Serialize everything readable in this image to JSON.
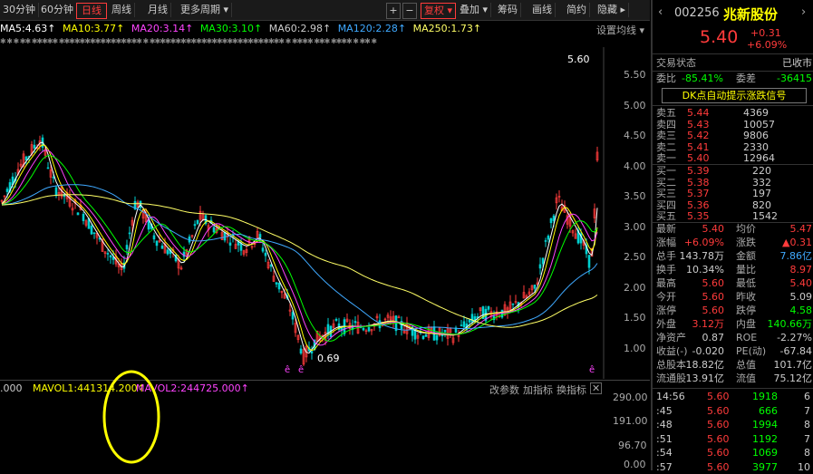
{
  "toolbar": {
    "periods": [
      "30分钟",
      "60分钟",
      "日线",
      "周线",
      "月线"
    ],
    "more_periods": "更多周期",
    "active_period": "日线",
    "plus": "+",
    "minus": "−",
    "adjust": "复权",
    "overlay": "叠加",
    "chips": "筹码",
    "draw": "画线",
    "simple": "简约",
    "hide": "隐藏"
  },
  "ma_line": {
    "ma5": "MA5:4.63↑",
    "ma10": "MA10:3.77↑",
    "ma20": "MA20:3.14↑",
    "ma30": "MA30:3.10↑",
    "ma60": "MA60:2.98↑",
    "ma120": "MA120:2.28↑",
    "ma250": "MA250:1.73↑",
    "settings": "设置均线"
  },
  "colors": {
    "up": "#ff3b3b",
    "down": "#00d0d0",
    "ma5": "#ffffff",
    "ma10": "#ffff00",
    "ma20": "#ff44ff",
    "ma30": "#00ff00",
    "ma60": "#cccccc",
    "ma120": "#3fa9ff",
    "ma250": "#ffff66",
    "annotation": "#ffff00"
  },
  "price_axis": [
    "5.50",
    "5.00",
    "4.50",
    "4.00",
    "3.50",
    "3.00",
    "2.50",
    "2.00",
    "1.50",
    "1.00"
  ],
  "chart_labels": {
    "high": "5.60",
    "low": "0.69",
    "marker": "ê"
  },
  "volume": {
    "prefix": ".000",
    "mavol1": "MAVOL1:441314.200↑",
    "mavol2": "MAVOL2:244725.000↑",
    "modify": "改参数",
    "add": "加指标",
    "switch": "换指标",
    "close": "✕",
    "axis": [
      "290.00",
      "191.00",
      "96.70",
      "0.00"
    ]
  },
  "stock": {
    "code": "002256",
    "name": "兆新股份",
    "price": "5.40",
    "change": "+0.31",
    "change_pct": "+6.09%",
    "status_label": "交易状态",
    "status": "已收市",
    "weibi_label": "委比",
    "weibi": "-85.41%",
    "weicha_label": "委差",
    "weicha": "-36415",
    "signal": "DK点自动提示涨跌信号"
  },
  "asks": [
    {
      "label": "卖五",
      "price": "5.44",
      "vol": "4369"
    },
    {
      "label": "卖四",
      "price": "5.43",
      "vol": "10057"
    },
    {
      "label": "卖三",
      "price": "5.42",
      "vol": "9806"
    },
    {
      "label": "卖二",
      "price": "5.41",
      "vol": "2330"
    },
    {
      "label": "卖一",
      "price": "5.40",
      "vol": "12964"
    }
  ],
  "bids": [
    {
      "label": "买一",
      "price": "5.39",
      "vol": "220"
    },
    {
      "label": "买二",
      "price": "5.38",
      "vol": "332"
    },
    {
      "label": "买三",
      "price": "5.37",
      "vol": "197"
    },
    {
      "label": "买四",
      "price": "5.36",
      "vol": "820"
    },
    {
      "label": "买五",
      "price": "5.35",
      "vol": "1542"
    }
  ],
  "stats": [
    {
      "l1": "最新",
      "v1": "5.40",
      "l2": "均价",
      "v2": "5.47"
    },
    {
      "l1": "涨幅",
      "v1": "+6.09%",
      "l2": "涨跌",
      "v2": "▲0.31"
    },
    {
      "l1": "总手",
      "v1": "143.78万",
      "l2": "金额",
      "v2": "7.86亿"
    },
    {
      "l1": "换手",
      "v1": "10.34%",
      "l2": "量比",
      "v2": "8.97"
    },
    {
      "l1": "最高",
      "v1": "5.60",
      "l2": "最低",
      "v2": "5.40"
    },
    {
      "l1": "今开",
      "v1": "5.60",
      "l2": "昨收",
      "v2": "5.09"
    },
    {
      "l1": "涨停",
      "v1": "5.60",
      "l2": "跌停",
      "v2": "4.58"
    },
    {
      "l1": "外盘",
      "v1": "3.12万",
      "l2": "内盘",
      "v2": "140.66万"
    },
    {
      "l1": "净资产",
      "v1": "0.87",
      "l2": "ROE",
      "v2": "-2.27%"
    },
    {
      "l1": "收益(-)",
      "v1": "-0.020",
      "l2": "PE(动)",
      "v2": "-67.84"
    },
    {
      "l1": "总股本",
      "v1": "18.82亿",
      "l2": "总值",
      "v2": "101.7亿"
    },
    {
      "l1": "流通股",
      "v1": "13.91亿",
      "l2": "流值",
      "v2": "75.12亿"
    }
  ],
  "ticks": [
    {
      "time": "14:56",
      "price": "5.60",
      "vol": "1918",
      "n": "6"
    },
    {
      "time": ":45",
      "price": "5.60",
      "vol": "666",
      "n": "7"
    },
    {
      "time": ":48",
      "price": "5.60",
      "vol": "1994",
      "n": "8"
    },
    {
      "time": ":51",
      "price": "5.60",
      "vol": "1192",
      "n": "7"
    },
    {
      "time": ":54",
      "price": "5.60",
      "vol": "1069",
      "n": "8"
    },
    {
      "time": ":57",
      "price": "5.60",
      "vol": "3977",
      "n": "10"
    }
  ]
}
